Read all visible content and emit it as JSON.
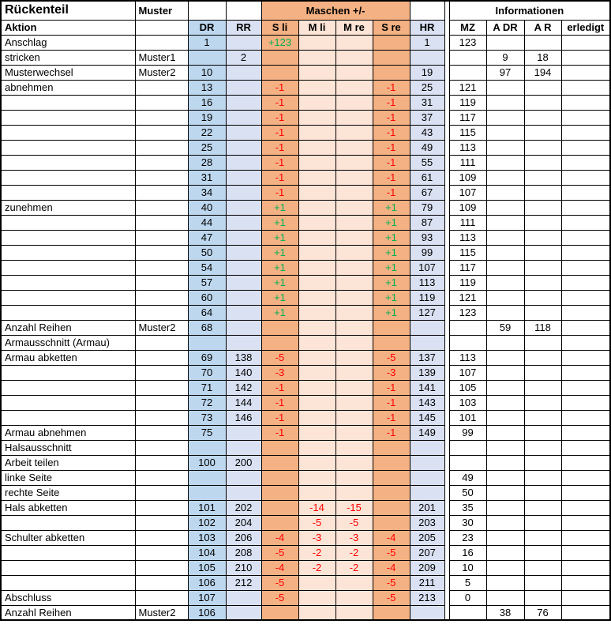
{
  "header": {
    "title": "Rückenteil",
    "muster_label": "Muster",
    "maschen_label": "Maschen +/-",
    "info_label": "Informationen",
    "columns": [
      "Aktion",
      "",
      "DR",
      "RR",
      "S li",
      "M li",
      "M re",
      "S re",
      "HR",
      "MZ",
      "A DR",
      "A R",
      "erledigt"
    ]
  },
  "colors": {
    "dr_column": "#BDD7EE",
    "rr_hr_columns": "#D9E1F2",
    "s_columns": "#F4B183",
    "m_columns": "#FCE4D6",
    "positive_text": "#00B050",
    "negative_text": "#FF0000",
    "border": "#000000"
  },
  "table": {
    "column_keys": [
      "aktion",
      "muster",
      "dr",
      "rr",
      "sli",
      "mli",
      "mre",
      "sre",
      "hr",
      "sp",
      "mz",
      "adr",
      "ar",
      "erl"
    ],
    "rows": [
      {
        "aktion": "Anschlag",
        "dr": "1",
        "sli": "+123",
        "hr": "1",
        "mz": "123"
      },
      {
        "aktion": "stricken",
        "muster": "Muster1",
        "rr": "2",
        "adr": "9",
        "ar": "18"
      },
      {
        "aktion": "Musterwechsel",
        "muster": "Muster2",
        "dr": "10",
        "hr": "19",
        "adr": "97",
        "ar": "194"
      },
      {
        "aktion": "abnehmen",
        "dr": "13",
        "sli": "-1",
        "sre": "-1",
        "hr": "25",
        "mz": "121"
      },
      {
        "dr": "16",
        "sli": "-1",
        "sre": "-1",
        "hr": "31",
        "mz": "119"
      },
      {
        "dr": "19",
        "sli": "-1",
        "sre": "-1",
        "hr": "37",
        "mz": "117"
      },
      {
        "dr": "22",
        "sli": "-1",
        "sre": "-1",
        "hr": "43",
        "mz": "115"
      },
      {
        "dr": "25",
        "sli": "-1",
        "sre": "-1",
        "hr": "49",
        "mz": "113"
      },
      {
        "dr": "28",
        "sli": "-1",
        "sre": "-1",
        "hr": "55",
        "mz": "111"
      },
      {
        "dr": "31",
        "sli": "-1",
        "sre": "-1",
        "hr": "61",
        "mz": "109"
      },
      {
        "dr": "34",
        "sli": "-1",
        "sre": "-1",
        "hr": "67",
        "mz": "107"
      },
      {
        "aktion": "zunehmen",
        "dr": "40",
        "sli": "+1",
        "sre": "+1",
        "hr": "79",
        "mz": "109"
      },
      {
        "dr": "44",
        "sli": "+1",
        "sre": "+1",
        "hr": "87",
        "mz": "111"
      },
      {
        "dr": "47",
        "sli": "+1",
        "sre": "+1",
        "hr": "93",
        "mz": "113"
      },
      {
        "dr": "50",
        "sli": "+1",
        "sre": "+1",
        "hr": "99",
        "mz": "115"
      },
      {
        "dr": "54",
        "sli": "+1",
        "sre": "+1",
        "hr": "107",
        "mz": "117"
      },
      {
        "dr": "57",
        "sli": "+1",
        "sre": "+1",
        "hr": "113",
        "mz": "119"
      },
      {
        "dr": "60",
        "sli": "+1",
        "sre": "+1",
        "hr": "119",
        "mz": "121"
      },
      {
        "dr": "64",
        "sli": "+1",
        "sre": "+1",
        "hr": "127",
        "mz": "123"
      },
      {
        "aktion": "Anzahl Reihen",
        "muster": "Muster2",
        "dr": "68",
        "adr": "59",
        "ar": "118"
      },
      {
        "aktion": "Armausschnitt (Armau)"
      },
      {
        "aktion": "Armau abketten",
        "dr": "69",
        "rr": "138",
        "sli": "-5",
        "sre": "-5",
        "hr": "137",
        "mz": "113"
      },
      {
        "dr": "70",
        "rr": "140",
        "sli": "-3",
        "sre": "-3",
        "hr": "139",
        "mz": "107"
      },
      {
        "dr": "71",
        "rr": "142",
        "sli": "-1",
        "sre": "-1",
        "hr": "141",
        "mz": "105"
      },
      {
        "dr": "72",
        "rr": "144",
        "sli": "-1",
        "sre": "-1",
        "hr": "143",
        "mz": "103"
      },
      {
        "dr": "73",
        "rr": "146",
        "sli": "-1",
        "sre": "-1",
        "hr": "145",
        "mz": "101"
      },
      {
        "aktion": "Armau abnehmen",
        "dr": "75",
        "sli": "-1",
        "sre": "-1",
        "hr": "149",
        "mz": "99"
      },
      {
        "aktion": "Halsausschnitt"
      },
      {
        "aktion": "Arbeit teilen",
        "dr": "100",
        "rr": "200"
      },
      {
        "aktion": "linke Seite",
        "mz": "49"
      },
      {
        "aktion": "rechte Seite",
        "mz": "50"
      },
      {
        "aktion": "Hals abketten",
        "dr": "101",
        "rr": "202",
        "mli": "-14",
        "mre": "-15",
        "hr": "201",
        "mz": "35"
      },
      {
        "dr": "102",
        "rr": "204",
        "mli": "-5",
        "mre": "-5",
        "hr": "203",
        "mz": "30"
      },
      {
        "aktion": "Schulter abketten",
        "dr": "103",
        "rr": "206",
        "sli": "-4",
        "mli": "-3",
        "mre": "-3",
        "sre": "-4",
        "hr": "205",
        "mz": "23"
      },
      {
        "dr": "104",
        "rr": "208",
        "sli": "-5",
        "mli": "-2",
        "mre": "-2",
        "sre": "-5",
        "hr": "207",
        "mz": "16"
      },
      {
        "dr": "105",
        "rr": "210",
        "sli": "-4",
        "mli": "-2",
        "mre": "-2",
        "sre": "-4",
        "hr": "209",
        "mz": "10"
      },
      {
        "dr": "106",
        "rr": "212",
        "sli": "-5",
        "sre": "-5",
        "hr": "211",
        "mz": "5"
      },
      {
        "aktion": "Abschluss",
        "dr": "107",
        "sli": "-5",
        "sre": "-5",
        "hr": "213",
        "mz": "0"
      },
      {
        "aktion": "Anzahl Reihen",
        "muster": "Muster2",
        "dr": "106",
        "adr": "38",
        "ar": "76"
      }
    ]
  }
}
